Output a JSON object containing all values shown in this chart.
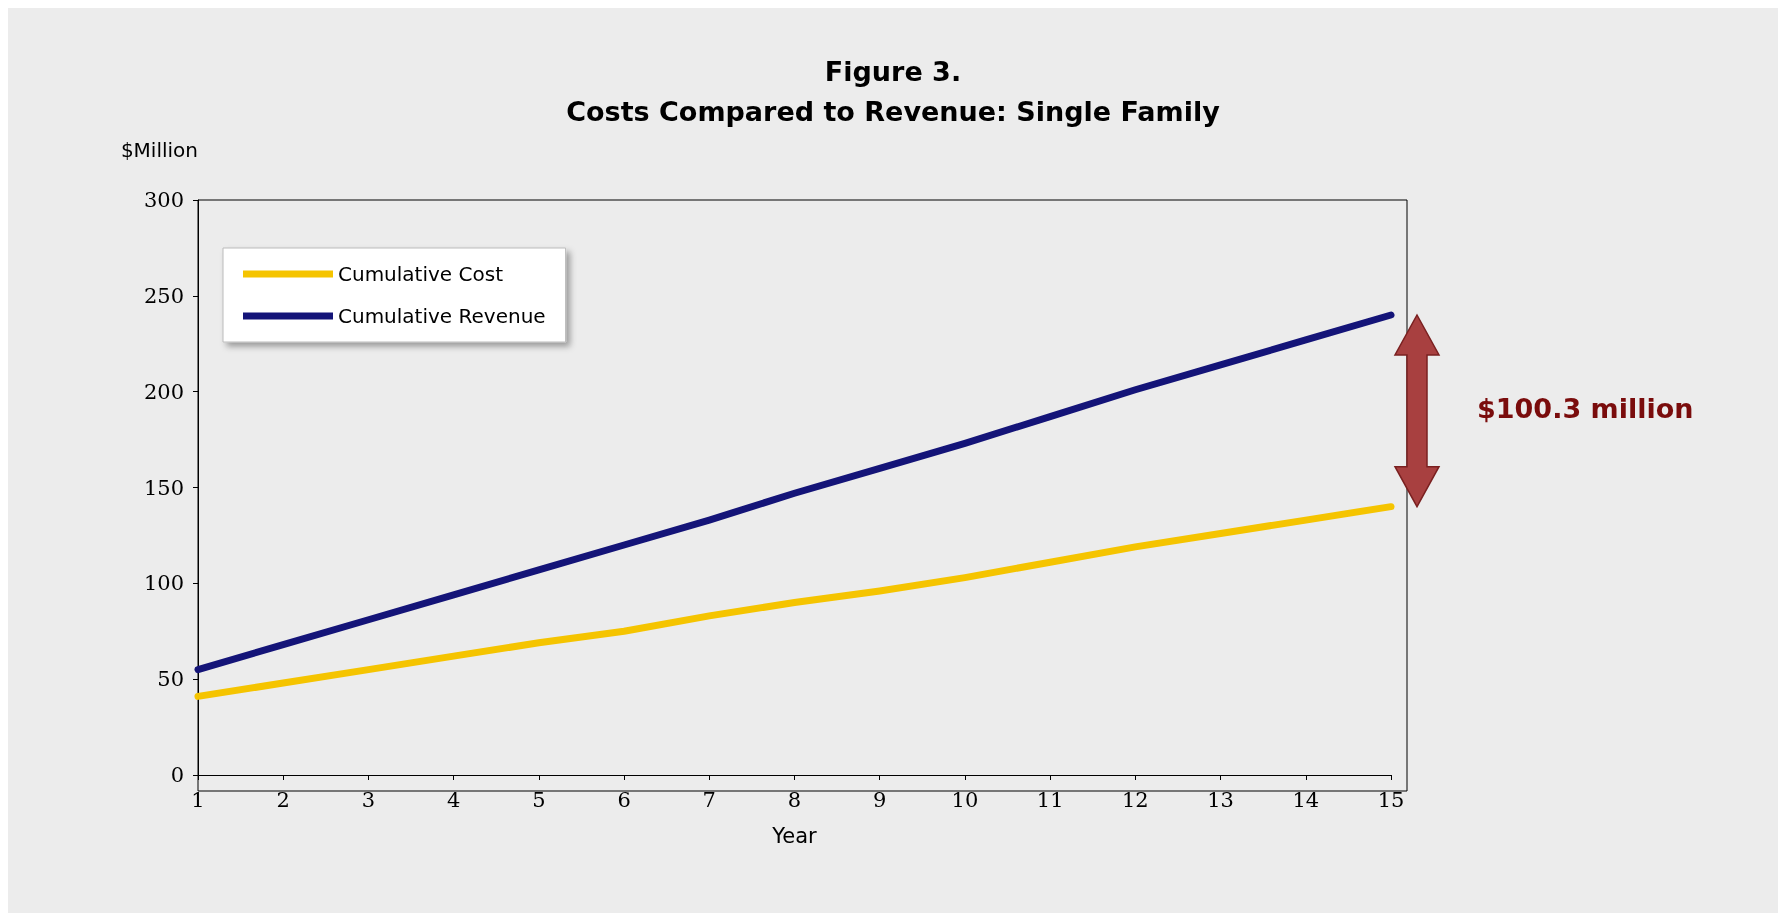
{
  "chart_data": {
    "type": "line",
    "title": "Figure 3.\nCosts Compared to Revenue: Single Family",
    "xlabel": "Year",
    "ylabel": "$Million",
    "x": [
      1,
      2,
      3,
      4,
      5,
      6,
      7,
      8,
      9,
      10,
      11,
      12,
      13,
      14,
      15
    ],
    "series": [
      {
        "name": "Cumulative Cost",
        "color": "#f5c400",
        "values": [
          41,
          48,
          55,
          62,
          69,
          75,
          83,
          90,
          96,
          103,
          111,
          119,
          126,
          133,
          140
        ]
      },
      {
        "name": "Cumulative Revenue",
        "color": "#141478",
        "values": [
          55,
          68,
          81,
          94,
          107,
          120,
          133,
          147,
          160,
          173,
          187,
          201,
          214,
          227,
          240
        ]
      }
    ],
    "xlim": [
      1,
      15
    ],
    "xticks": [
      1,
      2,
      3,
      4,
      5,
      6,
      7,
      8,
      9,
      10,
      11,
      12,
      13,
      14,
      15
    ],
    "ylim": [
      0,
      300
    ],
    "yticks": [
      0,
      50,
      100,
      150,
      200,
      250,
      300
    ],
    "grid": false,
    "legend": "top left",
    "marker": "none",
    "line_style": "solid",
    "annotations": [
      "$100.3 million"
    ]
  }
}
